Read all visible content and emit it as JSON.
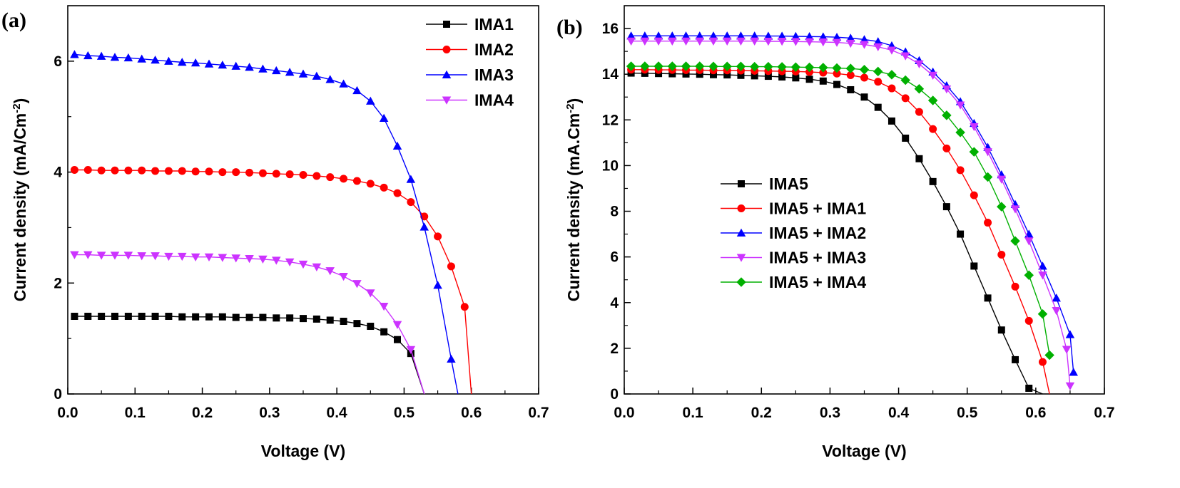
{
  "chart_data": [
    {
      "type": "line",
      "panel_label": "(a)",
      "xlabel": "Voltage (V)",
      "ylabel": "Current density (mA/Cm",
      "ylabel_sup": "-2",
      "ylabel_end": ")",
      "xlim": [
        0,
        0.7
      ],
      "ylim": [
        0,
        7
      ],
      "x_ticks": [
        0.0,
        0.1,
        0.2,
        0.3,
        0.4,
        0.5,
        0.6,
        0.7
      ],
      "x_tick_labels": [
        "0.0",
        "0.1",
        "0.2",
        "0.3",
        "0.4",
        "0.5",
        "0.6",
        "0.7"
      ],
      "y_ticks": [
        0,
        2,
        4,
        6
      ],
      "y_tick_labels": [
        "0",
        "2",
        "4",
        "6"
      ],
      "legend_position": "top-right",
      "series": [
        {
          "name": "IMA1",
          "color": "#000000",
          "marker": "square",
          "x": [
            0.01,
            0.03,
            0.05,
            0.07,
            0.09,
            0.11,
            0.13,
            0.15,
            0.17,
            0.19,
            0.21,
            0.23,
            0.25,
            0.27,
            0.29,
            0.31,
            0.33,
            0.35,
            0.37,
            0.39,
            0.41,
            0.43,
            0.45,
            0.47,
            0.49,
            0.51,
            0.53
          ],
          "y": [
            1.4,
            1.4,
            1.4,
            1.4,
            1.4,
            1.4,
            1.4,
            1.4,
            1.39,
            1.39,
            1.39,
            1.39,
            1.38,
            1.38,
            1.38,
            1.37,
            1.37,
            1.36,
            1.35,
            1.33,
            1.31,
            1.27,
            1.22,
            1.12,
            0.98,
            0.73,
            0.0
          ]
        },
        {
          "name": "IMA2",
          "color": "#ff0000",
          "marker": "circle",
          "x": [
            0.01,
            0.03,
            0.05,
            0.07,
            0.09,
            0.11,
            0.13,
            0.15,
            0.17,
            0.19,
            0.21,
            0.23,
            0.25,
            0.27,
            0.29,
            0.31,
            0.33,
            0.35,
            0.37,
            0.39,
            0.41,
            0.43,
            0.45,
            0.47,
            0.49,
            0.51,
            0.53,
            0.55,
            0.57,
            0.59,
            0.6
          ],
          "y": [
            4.04,
            4.04,
            4.03,
            4.03,
            4.03,
            4.03,
            4.02,
            4.02,
            4.02,
            4.01,
            4.01,
            4.0,
            4.0,
            3.99,
            3.98,
            3.97,
            3.96,
            3.95,
            3.93,
            3.91,
            3.88,
            3.84,
            3.79,
            3.72,
            3.62,
            3.46,
            3.2,
            2.84,
            2.3,
            1.57,
            0.0
          ]
        },
        {
          "name": "IMA3",
          "color": "#0000ff",
          "marker": "triangle-up",
          "x": [
            0.01,
            0.03,
            0.05,
            0.07,
            0.09,
            0.11,
            0.13,
            0.15,
            0.17,
            0.19,
            0.21,
            0.23,
            0.25,
            0.27,
            0.29,
            0.31,
            0.33,
            0.35,
            0.37,
            0.39,
            0.41,
            0.43,
            0.45,
            0.47,
            0.49,
            0.51,
            0.53,
            0.55,
            0.57,
            0.58
          ],
          "y": [
            6.12,
            6.1,
            6.09,
            6.07,
            6.06,
            6.04,
            6.02,
            6.0,
            5.98,
            5.97,
            5.95,
            5.93,
            5.91,
            5.89,
            5.86,
            5.83,
            5.8,
            5.77,
            5.73,
            5.67,
            5.59,
            5.47,
            5.28,
            4.97,
            4.47,
            3.87,
            3.01,
            1.96,
            0.63,
            0.0
          ]
        },
        {
          "name": "IMA4",
          "color": "#cc33ff",
          "marker": "triangle-down",
          "x": [
            0.01,
            0.03,
            0.05,
            0.07,
            0.09,
            0.11,
            0.13,
            0.15,
            0.17,
            0.19,
            0.21,
            0.23,
            0.25,
            0.27,
            0.29,
            0.31,
            0.33,
            0.35,
            0.37,
            0.39,
            0.41,
            0.43,
            0.45,
            0.47,
            0.49,
            0.51,
            0.53
          ],
          "y": [
            2.51,
            2.51,
            2.5,
            2.5,
            2.5,
            2.49,
            2.49,
            2.48,
            2.48,
            2.47,
            2.47,
            2.46,
            2.45,
            2.44,
            2.43,
            2.41,
            2.38,
            2.34,
            2.29,
            2.22,
            2.12,
            1.99,
            1.82,
            1.58,
            1.25,
            0.8,
            0.0
          ]
        }
      ]
    },
    {
      "type": "line",
      "panel_label": "(b)",
      "xlabel": "Voltage (V)",
      "ylabel": "Current density (mA.Cm",
      "ylabel_sup": "-2",
      "ylabel_end": ")",
      "xlim": [
        0,
        0.7
      ],
      "ylim": [
        0,
        17
      ],
      "x_ticks": [
        0.0,
        0.1,
        0.2,
        0.3,
        0.4,
        0.5,
        0.6,
        0.7
      ],
      "x_tick_labels": [
        "0.0",
        "0.1",
        "0.2",
        "0.3",
        "0.4",
        "0.5",
        "0.6",
        "0.7"
      ],
      "y_ticks": [
        0,
        2,
        4,
        6,
        8,
        10,
        12,
        14,
        16
      ],
      "y_tick_labels": [
        "0",
        "2",
        "4",
        "6",
        "8",
        "10",
        "12",
        "14",
        "16"
      ],
      "legend_position": "center-left",
      "series": [
        {
          "name": "IMA5",
          "color": "#000000",
          "marker": "square",
          "x": [
            0.01,
            0.03,
            0.05,
            0.07,
            0.09,
            0.11,
            0.13,
            0.15,
            0.17,
            0.19,
            0.21,
            0.23,
            0.25,
            0.27,
            0.29,
            0.31,
            0.33,
            0.35,
            0.37,
            0.39,
            0.41,
            0.43,
            0.45,
            0.47,
            0.49,
            0.51,
            0.53,
            0.55,
            0.57,
            0.59,
            0.61
          ],
          "y": [
            14.05,
            14.04,
            14.03,
            14.02,
            14.01,
            14.0,
            13.98,
            13.97,
            13.95,
            13.93,
            13.91,
            13.88,
            13.84,
            13.78,
            13.7,
            13.55,
            13.32,
            13.0,
            12.55,
            11.95,
            11.2,
            10.3,
            9.3,
            8.2,
            7.0,
            5.6,
            4.2,
            2.8,
            1.5,
            0.25,
            0.0
          ]
        },
        {
          "name": "IMA5 + IMA1",
          "color": "#ff0000",
          "marker": "circle",
          "x": [
            0.01,
            0.03,
            0.05,
            0.07,
            0.09,
            0.11,
            0.13,
            0.15,
            0.17,
            0.19,
            0.21,
            0.23,
            0.25,
            0.27,
            0.29,
            0.31,
            0.33,
            0.35,
            0.37,
            0.39,
            0.41,
            0.43,
            0.45,
            0.47,
            0.49,
            0.51,
            0.53,
            0.55,
            0.57,
            0.59,
            0.61,
            0.62
          ],
          "y": [
            14.2,
            14.2,
            14.19,
            14.19,
            14.18,
            14.18,
            14.17,
            14.17,
            14.16,
            14.15,
            14.14,
            14.13,
            14.12,
            14.1,
            14.07,
            14.03,
            13.96,
            13.85,
            13.67,
            13.38,
            12.95,
            12.35,
            11.6,
            10.75,
            9.8,
            8.7,
            7.5,
            6.1,
            4.7,
            3.2,
            1.4,
            0.0
          ]
        },
        {
          "name": "IMA5 + IMA2",
          "color": "#0000ff",
          "marker": "triangle-up",
          "x": [
            0.01,
            0.03,
            0.05,
            0.07,
            0.09,
            0.11,
            0.13,
            0.15,
            0.17,
            0.19,
            0.21,
            0.23,
            0.25,
            0.27,
            0.29,
            0.31,
            0.33,
            0.35,
            0.37,
            0.39,
            0.41,
            0.43,
            0.45,
            0.47,
            0.49,
            0.51,
            0.53,
            0.55,
            0.57,
            0.59,
            0.61,
            0.63,
            0.65,
            0.655
          ],
          "y": [
            15.68,
            15.68,
            15.68,
            15.68,
            15.68,
            15.68,
            15.68,
            15.68,
            15.68,
            15.68,
            15.67,
            15.67,
            15.66,
            15.65,
            15.64,
            15.62,
            15.58,
            15.52,
            15.43,
            15.25,
            14.98,
            14.6,
            14.1,
            13.5,
            12.8,
            11.85,
            10.8,
            9.6,
            8.3,
            7.0,
            5.6,
            4.2,
            2.6,
            0.95
          ]
        },
        {
          "name": "IMA5 + IMA3",
          "color": "#cc33ff",
          "marker": "triangle-down",
          "x": [
            0.01,
            0.03,
            0.05,
            0.07,
            0.09,
            0.11,
            0.13,
            0.15,
            0.17,
            0.19,
            0.21,
            0.23,
            0.25,
            0.27,
            0.29,
            0.31,
            0.33,
            0.35,
            0.37,
            0.39,
            0.41,
            0.43,
            0.45,
            0.47,
            0.49,
            0.51,
            0.53,
            0.55,
            0.57,
            0.59,
            0.61,
            0.63,
            0.645,
            0.65
          ],
          "y": [
            15.45,
            15.45,
            15.45,
            15.45,
            15.45,
            15.45,
            15.45,
            15.45,
            15.45,
            15.45,
            15.44,
            15.44,
            15.43,
            15.42,
            15.41,
            15.39,
            15.35,
            15.3,
            15.2,
            15.05,
            14.8,
            14.45,
            13.95,
            13.35,
            12.65,
            11.7,
            10.6,
            9.4,
            8.1,
            6.7,
            5.2,
            3.65,
            1.95,
            0.35
          ]
        },
        {
          "name": "IMA5 + IMA4",
          "color": "#00b000",
          "marker": "diamond",
          "x": [
            0.01,
            0.03,
            0.05,
            0.07,
            0.09,
            0.11,
            0.13,
            0.15,
            0.17,
            0.19,
            0.21,
            0.23,
            0.25,
            0.27,
            0.29,
            0.31,
            0.33,
            0.35,
            0.37,
            0.39,
            0.41,
            0.43,
            0.45,
            0.47,
            0.49,
            0.51,
            0.53,
            0.55,
            0.57,
            0.59,
            0.61,
            0.62
          ],
          "y": [
            14.35,
            14.35,
            14.35,
            14.35,
            14.35,
            14.35,
            14.34,
            14.34,
            14.34,
            14.33,
            14.33,
            14.32,
            14.31,
            14.3,
            14.29,
            14.27,
            14.25,
            14.2,
            14.12,
            13.98,
            13.74,
            13.36,
            12.85,
            12.2,
            11.45,
            10.6,
            9.5,
            8.2,
            6.7,
            5.2,
            3.5,
            1.7
          ]
        }
      ]
    }
  ]
}
